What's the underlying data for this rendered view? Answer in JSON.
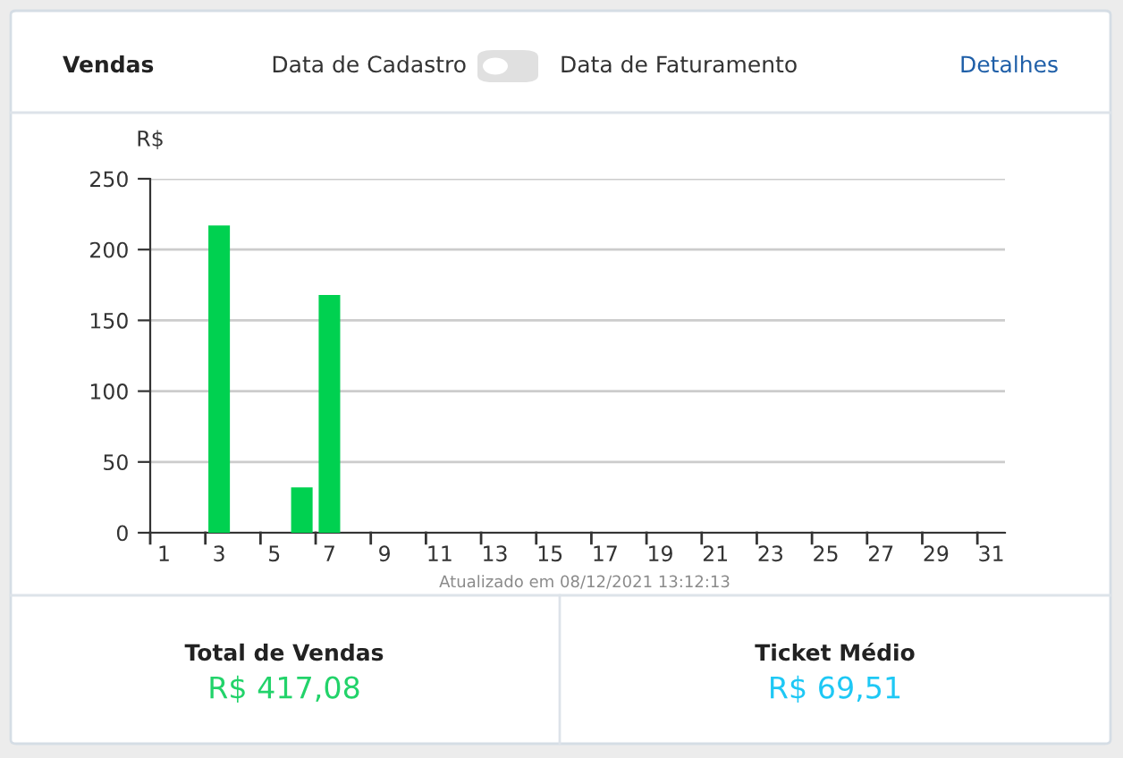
{
  "chart_data": [
    {
      "type": "bar",
      "title": "Vendas",
      "ylabel": "R$",
      "categories": [
        "1",
        null,
        "3",
        null,
        "5",
        null,
        "7",
        null,
        "9",
        null,
        "11",
        null,
        "13",
        null,
        "15",
        null,
        "17",
        null,
        "19",
        null,
        "21",
        null,
        "23",
        null,
        "25",
        null,
        "27",
        null,
        "29",
        null,
        "31"
      ],
      "values": [
        0,
        0,
        217,
        0,
        0,
        32,
        168,
        0,
        0,
        0,
        0,
        0,
        0,
        0,
        0,
        0,
        0,
        0,
        0,
        0,
        0,
        0,
        0,
        0,
        0,
        0,
        0,
        0,
        0,
        0,
        0
      ],
      "color": "#00d150",
      "ylim": [
        0,
        250
      ],
      "yticks": [
        0,
        50,
        100,
        150,
        200,
        250
      ],
      "grid": "y",
      "legend": false,
      "annotations": [
        "Data de Cadastro",
        "Data de Faturamento",
        "Detalhes",
        "Atualizado em 08/12/2021 13:12:13"
      ]
    },
    {
      "type": "other",
      "annotations": [
        "Total de Vendas",
        "R$ 417,08",
        "Ticket Médio",
        "R$ 69,51"
      ]
    }
  ]
}
